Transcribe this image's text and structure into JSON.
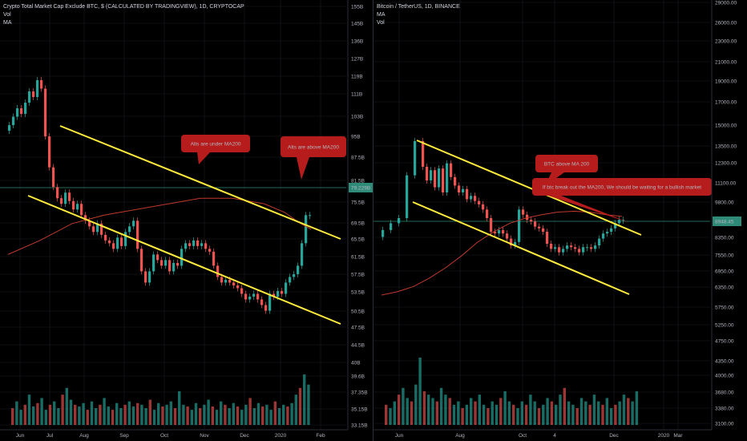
{
  "theme": {
    "background": "#000000",
    "up_color": "#26a69a",
    "down_color": "#ef5350",
    "ma_color": "#c0392b",
    "channel_color": "#ffeb3b",
    "grid_color": "#1a1d24",
    "price_line_color": "#2e8b78",
    "callout_color": "#b71c1c"
  },
  "chart_data": [
    {
      "type": "candlestick",
      "title": "Crypto Total Market Cap Exclude BTC, $ (CALCULATED BY TRADINGVIEW), 1D, CRYPTOCAP",
      "indicators": [
        "Vol",
        "MA"
      ],
      "y_tick_labels": [
        "155B",
        "145B",
        "136B",
        "127B",
        "119B",
        "111B",
        "103B",
        "95B",
        "87.5B",
        "81.5B",
        "75.5B",
        "69.5B",
        "65.5B",
        "61.5B",
        "57.5B",
        "53.5B",
        "50.5B",
        "47.5B",
        "44.5B",
        "40B",
        "39.6B",
        "37.35B",
        "35.15B",
        "33.15B"
      ],
      "x_tick_labels": [
        "Jun",
        "Jul",
        "Aug",
        "Sep",
        "Oct",
        "Nov",
        "Dec",
        "2020",
        "Feb"
      ],
      "current_price_label": "79.229B",
      "series": [
        {
          "name": "Price",
          "points": [
            [
              0,
              112
            ],
            [
              5,
              114
            ],
            [
              10,
              117
            ],
            [
              15,
              120
            ],
            [
              20,
              118
            ],
            [
              25,
              122
            ],
            [
              30,
              126
            ],
            [
              35,
              124
            ],
            [
              40,
              130
            ],
            [
              45,
              127
            ],
            [
              50,
              110
            ],
            [
              55,
              99
            ],
            [
              60,
              92
            ],
            [
              65,
              88
            ],
            [
              70,
              86
            ],
            [
              75,
              90
            ],
            [
              80,
              87
            ],
            [
              85,
              84
            ],
            [
              90,
              86
            ],
            [
              95,
              82
            ],
            [
              100,
              80
            ],
            [
              105,
              78
            ],
            [
              110,
              76
            ],
            [
              115,
              79
            ],
            [
              120,
              75
            ],
            [
              125,
              73
            ],
            [
              130,
              72
            ],
            [
              135,
              70
            ],
            [
              140,
              74
            ],
            [
              145,
              71
            ],
            [
              150,
              76
            ],
            [
              155,
              78
            ],
            [
              160,
              80
            ],
            [
              165,
              70
            ],
            [
              170,
              62
            ],
            [
              175,
              58
            ],
            [
              180,
              62
            ],
            [
              185,
              68
            ],
            [
              190,
              66
            ],
            [
              195,
              64
            ],
            [
              200,
              66
            ],
            [
              205,
              62
            ],
            [
              210,
              65
            ],
            [
              215,
              64
            ],
            [
              220,
              70
            ],
            [
              225,
              72
            ],
            [
              230,
              71
            ],
            [
              235,
              73
            ],
            [
              240,
              71
            ],
            [
              245,
              72
            ],
            [
              250,
              70
            ],
            [
              255,
              69
            ],
            [
              260,
              64
            ],
            [
              265,
              60
            ],
            [
              270,
              58
            ],
            [
              275,
              59
            ],
            [
              280,
              58
            ],
            [
              285,
              57
            ],
            [
              290,
              56
            ],
            [
              295,
              54
            ],
            [
              300,
              52
            ],
            [
              305,
              53
            ],
            [
              310,
              54
            ],
            [
              315,
              52
            ],
            [
              320,
              50
            ],
            [
              325,
              48
            ],
            [
              330,
              54
            ],
            [
              335,
              53
            ],
            [
              340,
              55
            ],
            [
              345,
              54
            ],
            [
              350,
              58
            ],
            [
              355,
              60
            ],
            [
              360,
              61
            ],
            [
              365,
              64
            ],
            [
              370,
              72
            ],
            [
              375,
              82
            ]
          ]
        },
        {
          "name": "MA",
          "points": [
            [
              0,
              68
            ],
            [
              40,
              73
            ],
            [
              80,
              79
            ],
            [
              120,
              82
            ],
            [
              160,
              84
            ],
            [
              200,
              86
            ],
            [
              240,
              88
            ],
            [
              280,
              88
            ],
            [
              320,
              86
            ],
            [
              345,
              83
            ],
            [
              365,
              79
            ],
            [
              378,
              77
            ]
          ]
        }
      ],
      "volume": [
        10,
        14,
        9,
        12,
        18,
        11,
        13,
        16,
        9,
        12,
        14,
        10,
        18,
        22,
        15,
        12,
        11,
        13,
        9,
        14,
        10,
        12,
        16,
        11,
        9,
        13,
        10,
        12,
        14,
        11,
        13,
        12,
        10,
        15,
        9,
        13,
        11,
        12,
        14,
        10,
        20,
        12,
        11,
        9,
        13,
        10,
        12,
        15,
        11,
        9,
        14,
        12,
        10,
        13,
        11,
        9,
        12,
        16,
        10,
        13,
        11,
        12,
        9,
        14,
        10,
        12,
        11,
        13,
        18,
        22,
        30,
        24
      ],
      "trendlines": [
        {
          "from": [
            75,
            157
          ],
          "to": [
            425,
            298
          ]
        },
        {
          "from": [
            35,
            244
          ],
          "to": [
            425,
            404
          ]
        }
      ],
      "annotations": [
        "Alts are under MA200",
        "Alts are above MA200"
      ]
    },
    {
      "type": "candlestick",
      "title": "Bitcoin / TetherUS, 1D, BINANCE",
      "indicators": [
        "MA",
        "Vol"
      ],
      "y_tick_labels": [
        "29000.00",
        "26000.00",
        "23000.00",
        "21000.00",
        "19000.00",
        "17000.00",
        "15000.00",
        "13500.00",
        "12300.00",
        "11100.00",
        "9800.00",
        "8350.00",
        "7550.00",
        "6950.00",
        "6350.00",
        "5750.00",
        "5250.00",
        "4750.00",
        "4350.00",
        "4000.00",
        "3680.00",
        "3380.00",
        "3100.00"
      ],
      "x_tick_labels": [
        "Jun",
        "Aug",
        "Oct",
        "4",
        "Dec",
        "2020",
        "Mar"
      ],
      "current_price_label": "8948.45",
      "series": [
        {
          "name": "Price",
          "points": [
            [
              0,
              7900
            ],
            [
              10,
              8300
            ],
            [
              20,
              8700
            ],
            [
              30,
              9000
            ],
            [
              40,
              11500
            ],
            [
              50,
              13500
            ],
            [
              55,
              12000
            ],
            [
              60,
              11200
            ],
            [
              65,
              11800
            ],
            [
              70,
              10800
            ],
            [
              75,
              11900
            ],
            [
              80,
              10500
            ],
            [
              85,
              12200
            ],
            [
              90,
              11400
            ],
            [
              95,
              10900
            ],
            [
              100,
              10500
            ],
            [
              105,
              10700
            ],
            [
              110,
              10100
            ],
            [
              115,
              10300
            ],
            [
              120,
              10000
            ],
            [
              125,
              9800
            ],
            [
              130,
              9500
            ],
            [
              135,
              9000
            ],
            [
              140,
              8200
            ],
            [
              145,
              8100
            ],
            [
              150,
              8300
            ],
            [
              155,
              8100
            ],
            [
              160,
              7800
            ],
            [
              165,
              7400
            ],
            [
              170,
              7600
            ],
            [
              175,
              9500
            ],
            [
              180,
              9200
            ],
            [
              185,
              8900
            ],
            [
              190,
              8800
            ],
            [
              195,
              8500
            ],
            [
              200,
              8400
            ],
            [
              205,
              8200
            ],
            [
              210,
              7500
            ],
            [
              215,
              7200
            ],
            [
              220,
              7300
            ],
            [
              225,
              7000
            ],
            [
              230,
              7200
            ],
            [
              235,
              7400
            ],
            [
              240,
              7300
            ],
            [
              245,
              7200
            ],
            [
              250,
              7000
            ],
            [
              255,
              7300
            ],
            [
              260,
              7300
            ],
            [
              265,
              7200
            ],
            [
              270,
              7400
            ],
            [
              275,
              7800
            ],
            [
              280,
              8100
            ],
            [
              285,
              8200
            ],
            [
              290,
              8400
            ],
            [
              295,
              8700
            ],
            [
              300,
              8900
            ]
          ]
        },
        {
          "name": "MA",
          "points": [
            [
              0,
              4500
            ],
            [
              20,
              4700
            ],
            [
              40,
              5000
            ],
            [
              60,
              5500
            ],
            [
              80,
              6100
            ],
            [
              100,
              6800
            ],
            [
              120,
              7600
            ],
            [
              140,
              8200
            ],
            [
              160,
              8700
            ],
            [
              180,
              9000
            ],
            [
              200,
              9200
            ],
            [
              220,
              9350
            ],
            [
              240,
              9400
            ],
            [
              260,
              9350
            ],
            [
              280,
              9200
            ],
            [
              300,
              9100
            ]
          ]
        }
      ],
      "volume": [
        12,
        10,
        14,
        18,
        22,
        16,
        14,
        24,
        40,
        20,
        18,
        16,
        14,
        22,
        18,
        16,
        12,
        14,
        10,
        12,
        16,
        14,
        18,
        12,
        10,
        14,
        12,
        16,
        20,
        14,
        12,
        10,
        14,
        12,
        18,
        14,
        10,
        12,
        16,
        14,
        12,
        18,
        22,
        14,
        12,
        10,
        16,
        14,
        12,
        18,
        14,
        12,
        16,
        10,
        12,
        14,
        18,
        16,
        14,
        20
      ],
      "trendlines": [
        {
          "from": [
            520,
            175
          ],
          "to": [
            800,
            293
          ]
        },
        {
          "from": [
            515,
            252
          ],
          "to": [
            785,
            367
          ]
        }
      ],
      "annotations": [
        "BTC above MA 200",
        "If btc break out the MA200, We should be waiting for a bullish market"
      ]
    }
  ]
}
